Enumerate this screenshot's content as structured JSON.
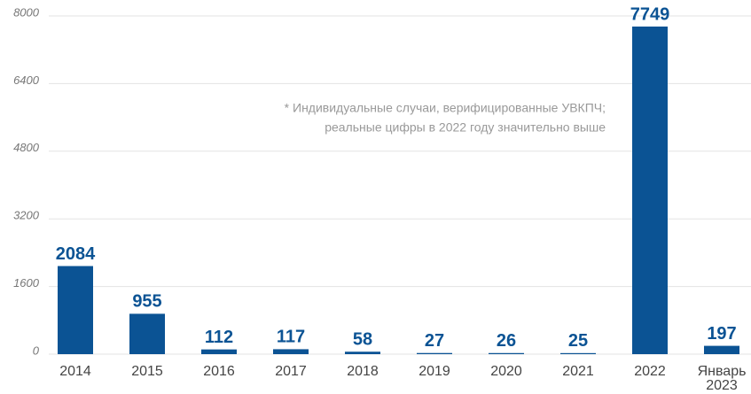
{
  "chart_data": {
    "type": "bar",
    "categories": [
      "2014",
      "2015",
      "2016",
      "2017",
      "2018",
      "2019",
      "2020",
      "2021",
      "2022",
      "Январь 2023"
    ],
    "values": [
      2084,
      955,
      112,
      117,
      58,
      27,
      26,
      25,
      7749,
      197
    ],
    "color": "#0b5394",
    "ylim": [
      0,
      8000
    ],
    "yticks": [
      0,
      1600,
      3200,
      4800,
      6400,
      8000
    ],
    "grid": true,
    "annotation": [
      "* Индивидуальные случаи, верифицированные УВКПЧ;",
      "реальные цифры в 2022 году значительно выше"
    ]
  }
}
